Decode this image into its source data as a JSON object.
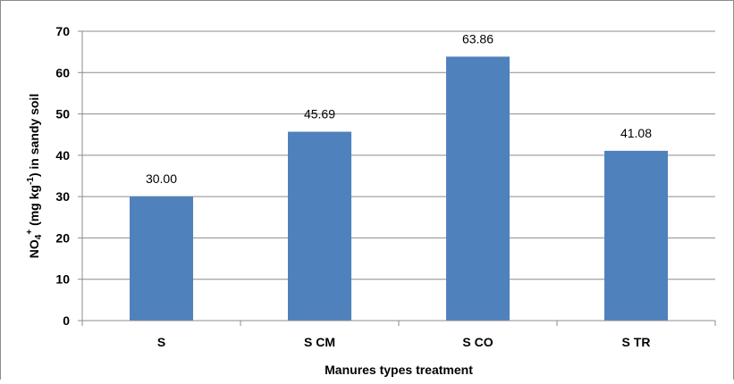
{
  "chart_data": {
    "type": "bar",
    "categories": [
      "S",
      "S CM",
      "S CO",
      "S TR"
    ],
    "values": [
      30.0,
      45.69,
      63.86,
      41.08
    ],
    "data_labels": [
      "30.00",
      "45.69",
      "63.86",
      "41.08"
    ],
    "title": "",
    "xlabel": "Manures types treatment",
    "ylabel": {
      "main": "NO",
      "sub": "4",
      "sup": "+",
      "mid": " (mg kg",
      "sup2": "-1",
      "end": ") in sandy soil"
    },
    "ylim": [
      0,
      70
    ],
    "yticks": [
      "0",
      "10",
      "20",
      "30",
      "40",
      "50",
      "60",
      "70"
    ],
    "grid": true,
    "legend": "none",
    "colors": {
      "bar": "#4f81bd",
      "grid": "#8c8c8c",
      "axis": "#8c8c8c",
      "text": "#000000"
    }
  }
}
